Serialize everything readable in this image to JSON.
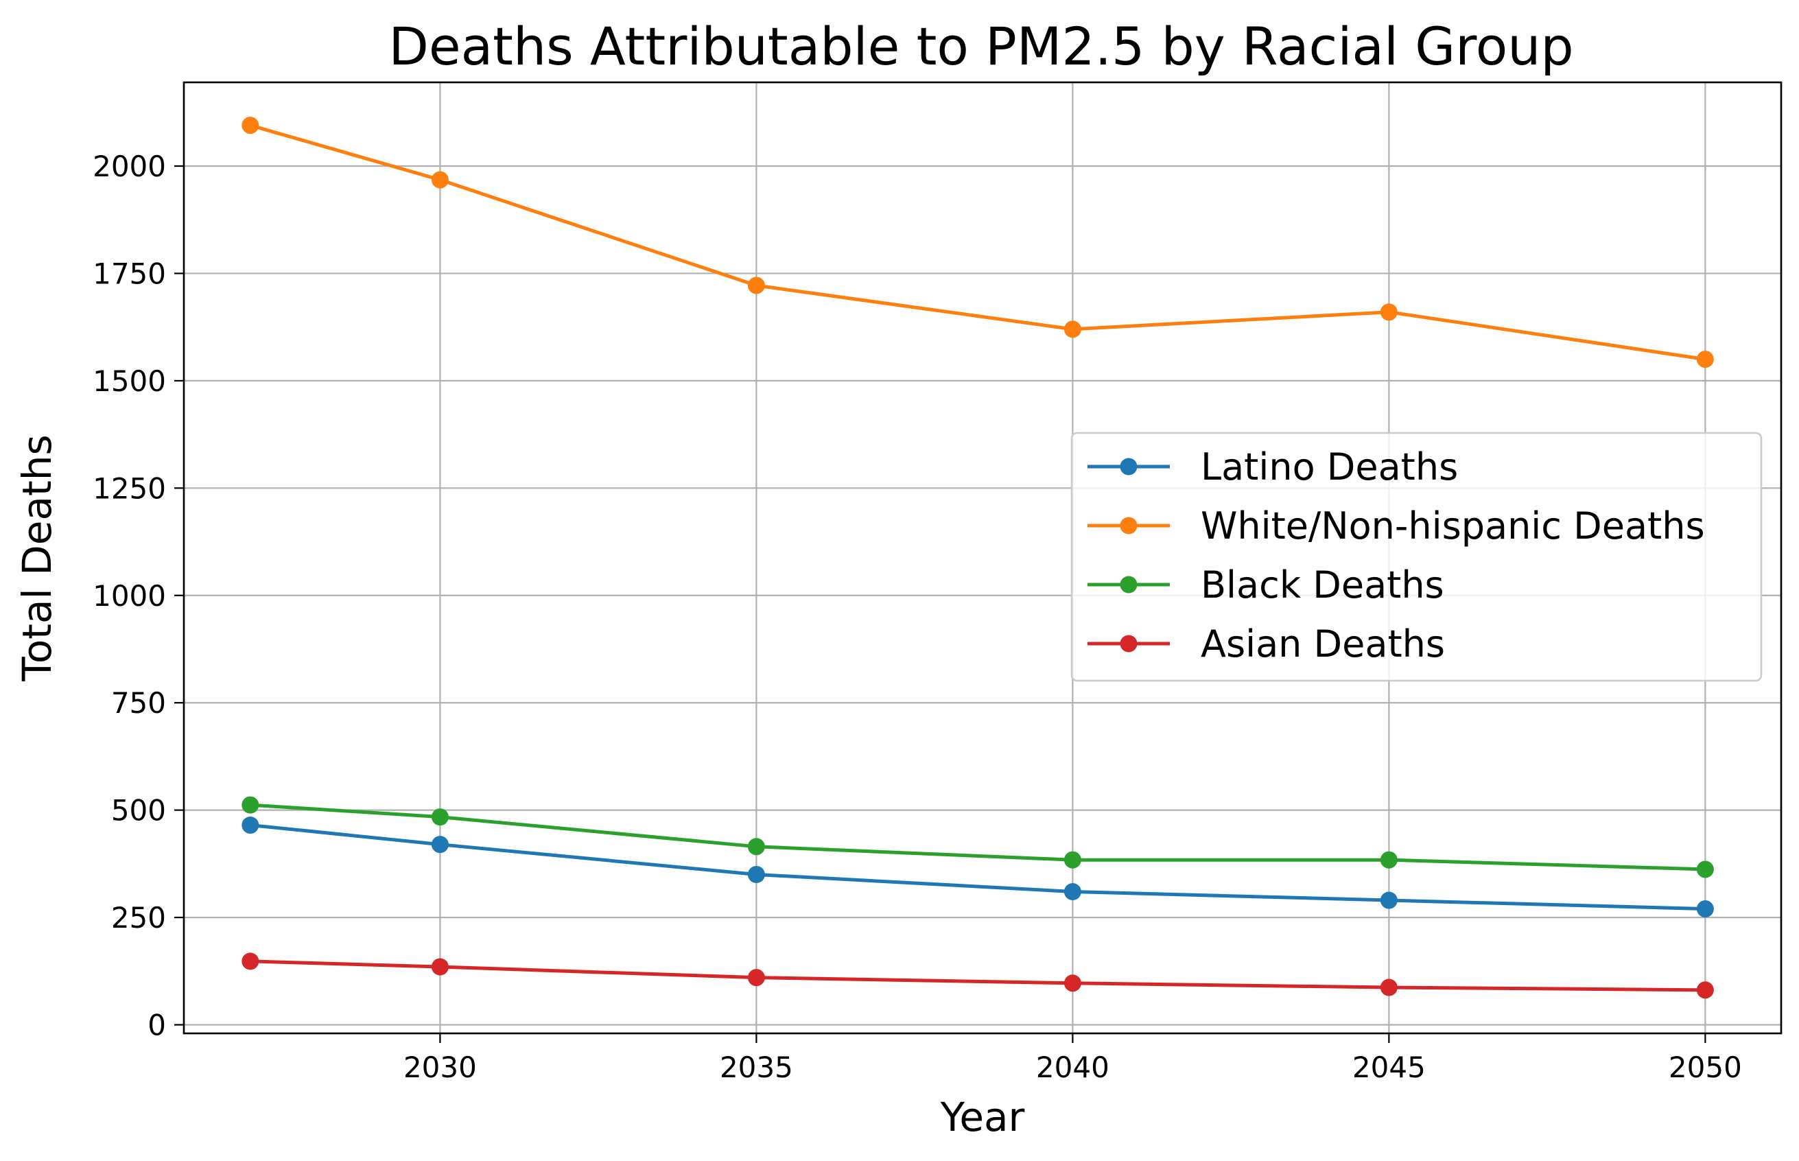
{
  "chart_data": {
    "type": "line",
    "title": "Deaths Attributable to PM2.5 by Racial Group",
    "xlabel": "Year",
    "ylabel": "Total Deaths",
    "x": [
      2027,
      2030,
      2035,
      2040,
      2045,
      2050
    ],
    "x_ticks": [
      2030,
      2035,
      2040,
      2045,
      2050
    ],
    "y_ticks": [
      0,
      250,
      500,
      750,
      1000,
      1250,
      1500,
      1750,
      2000
    ],
    "xlim": [
      2025.95,
      2051.2
    ],
    "ylim": [
      -20,
      2195
    ],
    "grid": true,
    "legend_position": "center-right",
    "series": [
      {
        "name": "Latino Deaths",
        "color": "#1f77b4",
        "values": [
          465,
          420,
          350,
          310,
          290,
          270
        ]
      },
      {
        "name": "White/Non-hispanic Deaths",
        "color": "#ff7f0e",
        "values": [
          2095,
          1968,
          1722,
          1620,
          1660,
          1550
        ]
      },
      {
        "name": "Black Deaths",
        "color": "#2ca02c",
        "values": [
          512,
          484,
          415,
          384,
          384,
          362
        ]
      },
      {
        "name": "Asian Deaths",
        "color": "#d62728",
        "values": [
          148,
          135,
          110,
          97,
          87,
          81
        ]
      }
    ]
  }
}
